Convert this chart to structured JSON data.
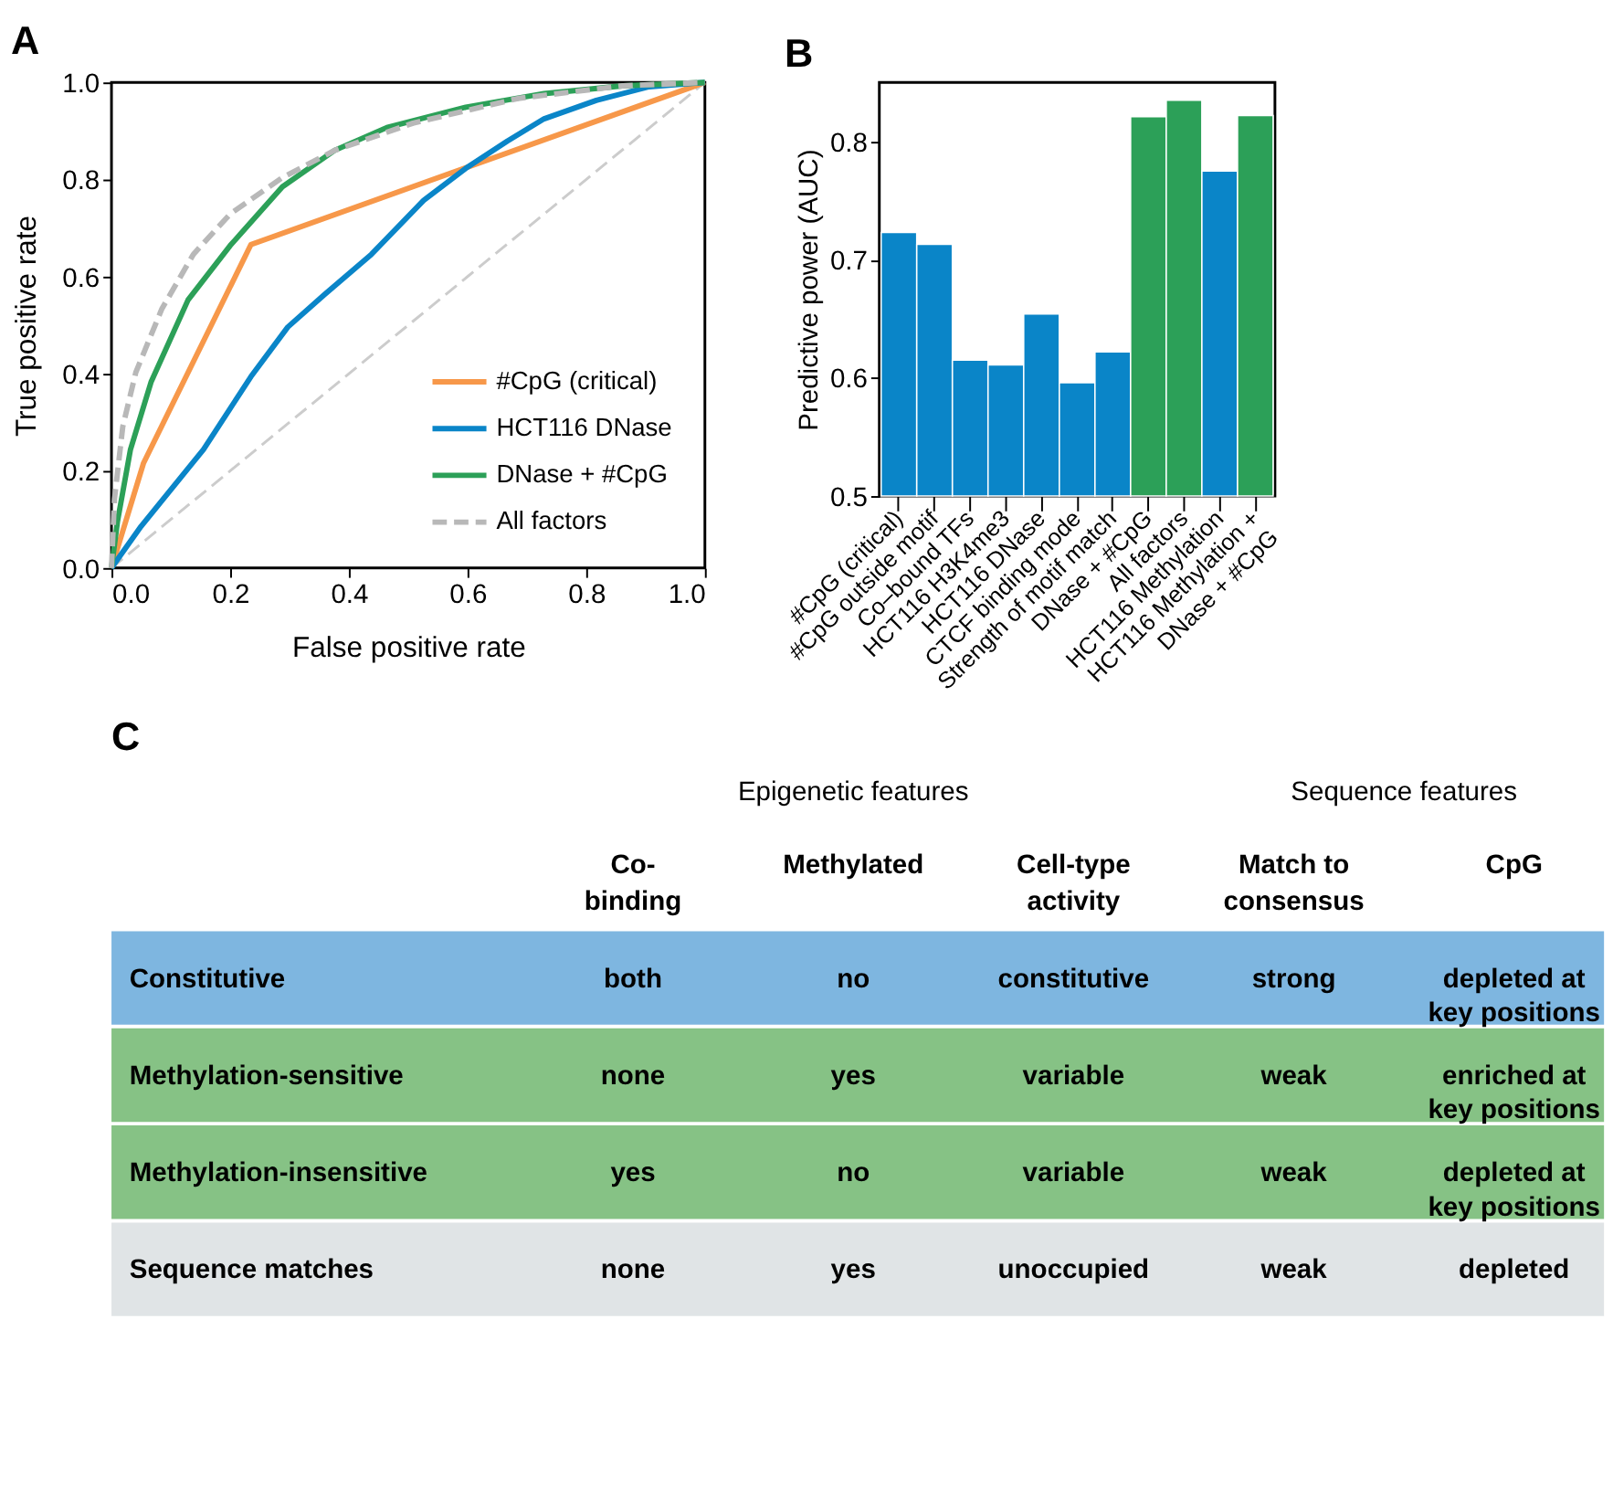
{
  "chart_data": [
    {
      "type": "line",
      "title": "A",
      "xlabel": "False positive rate",
      "ylabel": "True positive rate",
      "xlim": [
        0,
        1
      ],
      "ylim": [
        0,
        1
      ],
      "xticks": [
        {
          "value": 0,
          "label": "0.0"
        },
        0.2,
        0.4,
        0.6,
        0.8,
        {
          "value": 1,
          "label": "1.0"
        }
      ],
      "yticks": [
        {
          "value": 0,
          "label": "0.0"
        },
        0.2,
        0.4,
        0.6,
        0.8,
        {
          "value": 1,
          "label": "1.0"
        }
      ],
      "grid": false,
      "legend": "bottom right",
      "series": [
        {
          "color": "#cccccc",
          "line_style": "dashed",
          "x": [
            0,
            1
          ],
          "values": [
            0,
            1
          ]
        },
        {
          "name": "#CpG (critical)",
          "color": "#f7984a",
          "line_style": "solid",
          "x": [
            0,
            0.054,
            0.235,
            1
          ],
          "values": [
            0,
            0.216,
            0.666,
            1
          ]
        },
        {
          "name": "HCT116 DNase",
          "color": "#0a85c8",
          "line_style": "solid",
          "x": [
            0,
            0.05,
            0.155,
            0.235,
            0.297,
            0.358,
            0.438,
            0.526,
            0.597,
            0.667,
            0.729,
            0.817,
            0.906,
            1
          ],
          "values": [
            0,
            0.086,
            0.244,
            0.394,
            0.496,
            0.562,
            0.646,
            0.757,
            0.823,
            0.879,
            0.925,
            0.963,
            0.991,
            1
          ]
        },
        {
          "name": "DNase + #CpG",
          "color": "#2ca058",
          "line_style": "solid",
          "x": [
            0,
            0.01,
            0.032,
            0.067,
            0.129,
            0.2,
            0.288,
            0.376,
            0.464,
            0.597,
            0.729,
            0.861,
            1
          ],
          "values": [
            0,
            0.095,
            0.244,
            0.384,
            0.552,
            0.664,
            0.785,
            0.86,
            0.907,
            0.949,
            0.977,
            0.993,
            1
          ]
        },
        {
          "name": "All factors",
          "color": "#b8b8b8",
          "line_style": "dashed",
          "x": [
            0,
            0.005,
            0.019,
            0.041,
            0.085,
            0.138,
            0.2,
            0.288,
            0.376,
            0.508,
            0.685,
            0.861,
            1
          ],
          "values": [
            0,
            0.142,
            0.291,
            0.403,
            0.534,
            0.646,
            0.729,
            0.804,
            0.86,
            0.916,
            0.967,
            0.993,
            1
          ]
        }
      ]
    },
    {
      "type": "bar",
      "title": "B",
      "ylabel": "Predictive power (AUC)",
      "ylim": [
        0.5,
        0.85
      ],
      "yticks": [
        0.5,
        0.6,
        0.7,
        0.8
      ],
      "grid": false,
      "categories": [
        "#CpG (critical)",
        "#CpG outside motif",
        "Co–bound TFs",
        "HCT116 H3K4me3",
        "HCT116 DNase",
        "CTCF binding mode",
        "Strength of motif match",
        "DNase + #CpG",
        "All factors",
        "HCT116 Methylation",
        "HCT116 Methylation + DNase + #CpG"
      ],
      "values": [
        0.723,
        0.713,
        0.615,
        0.611,
        0.654,
        0.596,
        0.622,
        0.821,
        0.835,
        0.775,
        0.822
      ],
      "colors": [
        "#0a85c8",
        "#0a85c8",
        "#0a85c8",
        "#0a85c8",
        "#0a85c8",
        "#0a85c8",
        "#0a85c8",
        "#2ca058",
        "#2ca058",
        "#0a85c8",
        "#2ca058"
      ]
    },
    {
      "type": "other",
      "title": "C",
      "annotations": [
        "Epigenetic features",
        "Sequence features"
      ],
      "categories": [
        "Co-binding",
        "Methylated",
        "Cell-type activity",
        "Match to consensus",
        "CpG"
      ],
      "y_categories": [
        "Constitutive",
        "Methylation-sensitive",
        "Methylation-insensitive",
        "Sequence matches"
      ],
      "colors": [
        "#7eb6e0",
        "#86c285",
        "#86c285",
        "#e0e4e6"
      ],
      "cell_labels": [
        [
          "both",
          "no",
          "constitutive",
          "strong",
          "depleted at key positions"
        ],
        [
          "none",
          "yes",
          "variable",
          "weak",
          "enriched at key positions"
        ],
        [
          "yes",
          "no",
          "variable",
          "weak",
          "depleted at key positions"
        ],
        [
          "none",
          "yes",
          "unoccupied",
          "weak",
          "depleted"
        ]
      ]
    }
  ]
}
